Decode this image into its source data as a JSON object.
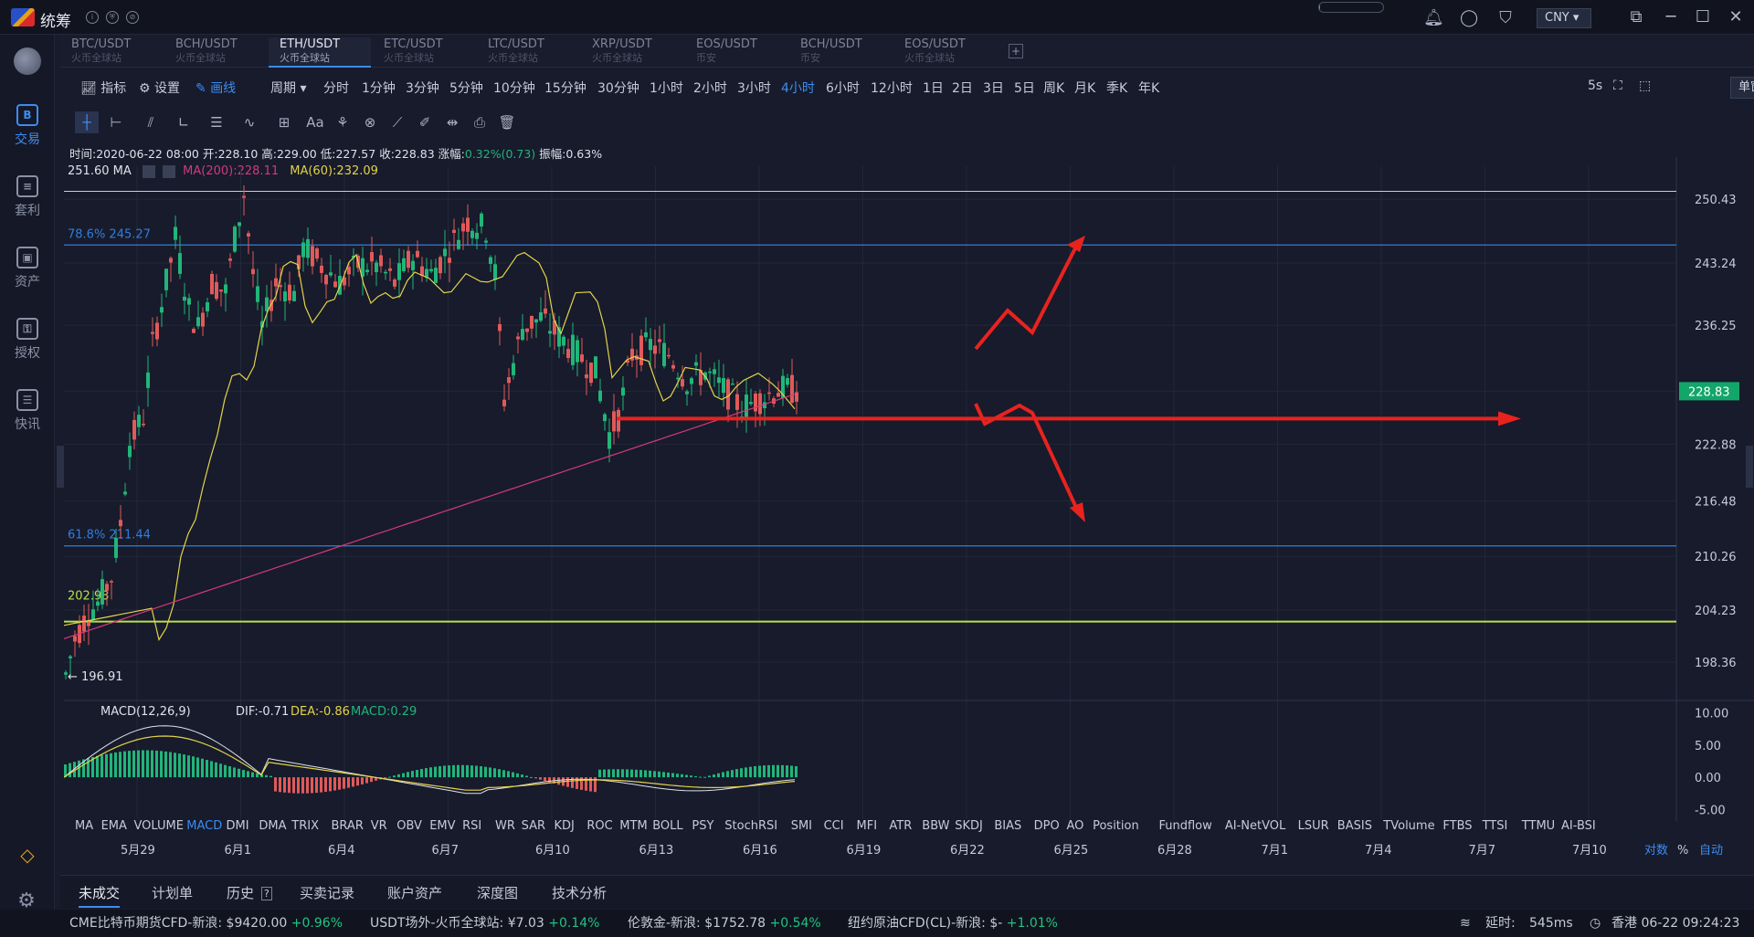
{
  "app": {
    "name": "统筹",
    "currency": "CNY",
    "win_controls": [
      "minimize",
      "restore",
      "maximize",
      "close"
    ]
  },
  "progress": {
    "fraction": 0.02
  },
  "sidebar": {
    "items": [
      {
        "label": "交易",
        "icon": "B",
        "active": true
      },
      {
        "label": "套利",
        "icon": "≡",
        "active": false
      },
      {
        "label": "资产",
        "icon": "▣",
        "active": false
      },
      {
        "label": "授权",
        "icon": "⚿",
        "active": false
      },
      {
        "label": "快讯",
        "icon": "☰",
        "active": false
      }
    ]
  },
  "tabs": [
    {
      "pair": "BTC/USDT",
      "exchange": "火币全球站"
    },
    {
      "pair": "BCH/USDT",
      "exchange": "火币全球站"
    },
    {
      "pair": "ETH/USDT",
      "exchange": "火币全球站",
      "active": true
    },
    {
      "pair": "ETC/USDT",
      "exchange": "火币全球站"
    },
    {
      "pair": "LTC/USDT",
      "exchange": "火币全球站"
    },
    {
      "pair": "XRP/USDT",
      "exchange": "火币全球站"
    },
    {
      "pair": "EOS/USDT",
      "exchange": "币安"
    },
    {
      "pair": "BCH/USDT",
      "exchange": "币安"
    },
    {
      "pair": "EOS/USDT",
      "exchange": "火币全球站"
    }
  ],
  "toolbar": {
    "indicator": "指标",
    "settings": "设置",
    "draw": "画线",
    "period": "周期",
    "periods": [
      "分时",
      "1分钟",
      "3分钟",
      "5分钟",
      "10分钟",
      "15分钟",
      "30分钟",
      "1小时",
      "2小时",
      "3小时",
      "4小时",
      "6小时",
      "12小时",
      "1日",
      "2日",
      "3日",
      "5日",
      "周K",
      "月K",
      "季K",
      "年K"
    ],
    "active_period": "4小时",
    "refresh": "5s",
    "window": "单窗口"
  },
  "ohlc": {
    "time_label": "时间:",
    "time": "2020-06-22 08:00",
    "open_label": "开:",
    "open": "228.10",
    "high_label": "高:",
    "high": "229.00",
    "low_label": "低:",
    "low": "227.57",
    "close_label": "收:",
    "close": "228.83",
    "change_label": "涨幅:",
    "change": "0.32%(0.73)",
    "amp_label": "振幅:",
    "amp": "0.63%"
  },
  "ma_legend": {
    "top_value": "251.60",
    "ma": "MA",
    "ma200": "MA(200):228.11",
    "ma60": "MA(60):232.09"
  },
  "price_axis": {
    "labels": [
      "250.43",
      "243.24",
      "236.25",
      "228.83",
      "222.88",
      "216.48",
      "210.26",
      "204.23",
      "198.36"
    ],
    "current": "228.83"
  },
  "fib": [
    {
      "label": "78.6% 245.27"
    },
    {
      "label": "61.8% 211.44"
    }
  ],
  "level_label": "202.93",
  "low_marker": "196.91",
  "macd": {
    "name": "MACD(12,26,9)",
    "dif": "DIF:-0.71",
    "dea": "DEA:-0.86",
    "macd": "MACD:0.29",
    "axis": [
      "10.00",
      "5.00",
      "0.00",
      "-5.00"
    ]
  },
  "indicators": [
    "MA",
    "EMA",
    "VOLUME",
    "MACD",
    "DMI",
    "DMA",
    "TRIX",
    "BRAR",
    "VR",
    "OBV",
    "EMV",
    "RSI",
    "WR",
    "SAR",
    "KDJ",
    "ROC",
    "MTM",
    "BOLL",
    "PSY",
    "StochRSI",
    "SMI",
    "CCI",
    "MFI",
    "ATR",
    "BBW",
    "SKDJ",
    "BIAS",
    "DPO",
    "AO",
    "Position",
    "Fundflow",
    "AI-NetVOL",
    "LSUR",
    "BASIS",
    "TVolume",
    "FTBS",
    "TTSI",
    "TTMU",
    "AI-BSI"
  ],
  "active_indicator": "MACD",
  "dates": [
    "5月29",
    "6月1",
    "6月4",
    "6月7",
    "6月10",
    "6月13",
    "6月16",
    "6月19",
    "6月22",
    "6月25",
    "6月28",
    "7月1",
    "7月4",
    "7月7",
    "7月10"
  ],
  "axis_opts": {
    "log": "对数",
    "pct": "%",
    "auto": "自动"
  },
  "bottom_tabs": [
    "未成交",
    "计划单",
    "历史",
    "买卖记录",
    "账户资产",
    "深度图",
    "技术分析"
  ],
  "ticker": [
    {
      "name": "CME比特币期货CFD-新浪:",
      "price": "$9420.00",
      "chg": "+0.96%"
    },
    {
      "name": "USDT场外-火币全球站:",
      "price": "¥7.03",
      "chg": "+0.14%"
    },
    {
      "name": "伦敦金-新浪:",
      "price": "$1752.78",
      "chg": "+0.54%"
    },
    {
      "name": "纽约原油CFD(CL)-新浪:",
      "price": "$-",
      "chg": "+1.01%"
    }
  ],
  "status": {
    "latency": "延时:",
    "latency_val": "545ms",
    "clock": "香港 06-22 09:24:23"
  },
  "colors": {
    "up": "#21b57a",
    "down": "#e05a5a",
    "accent": "#3d8cf0",
    "ma60": "#e3d34a",
    "ma200": "#d23a7a",
    "fib": "#2f7ee0",
    "level": "#b9e04a",
    "arrow": "#e8231f"
  }
}
